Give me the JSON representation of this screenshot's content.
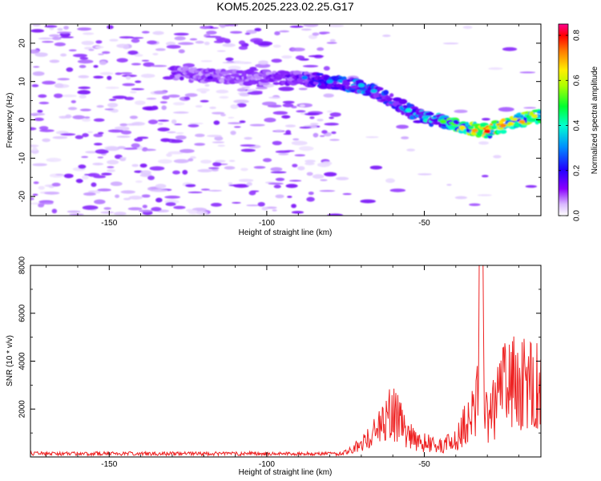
{
  "title": "KOM5.2025.223.02.25.G17",
  "chart_data": [
    {
      "type": "heatmap",
      "xlabel": "Height of straight line (km)",
      "ylabel": "Frequency (Hz)",
      "xlim": [
        -175,
        -13
      ],
      "ylim": [
        -25,
        25
      ],
      "xticks": [
        -150,
        -100,
        -50
      ],
      "yticks": [
        -20,
        -10,
        0,
        10,
        20
      ],
      "colorbar": {
        "label": "Normalized spectral amplitude",
        "range": [
          0,
          0.85
        ],
        "ticks": [
          0.0,
          0.2,
          0.4,
          0.6,
          0.8
        ],
        "colors": [
          "#ffffff",
          "#8a00ff",
          "#2200ff",
          "#00e0ff",
          "#00ff40",
          "#ffff00",
          "#ff8000",
          "#ff0000",
          "#ff0090"
        ]
      },
      "ridge": {
        "description_points_x": [
          -128,
          -110,
          -90,
          -80,
          -72,
          -65,
          -58,
          -52,
          -45,
          -38,
          -30,
          -20,
          -13
        ],
        "description_points_y": [
          12,
          11,
          11,
          10,
          9,
          7,
          4,
          1,
          0,
          -2,
          -3,
          0,
          1
        ],
        "peak_amplitude": [
          0.15,
          0.12,
          0.2,
          0.3,
          0.35,
          0.3,
          0.3,
          0.4,
          0.45,
          0.6,
          0.75,
          0.65,
          0.55
        ]
      }
    },
    {
      "type": "line",
      "xlabel": "Height of straight line (km)",
      "ylabel": "SNR (10 * v/v)",
      "xlim": [
        -175,
        -13
      ],
      "ylim": [
        0,
        8000
      ],
      "xticks": [
        -150,
        -100,
        -50
      ],
      "yticks": [
        2000,
        4000,
        6000,
        8000
      ],
      "color": "#ee2222",
      "series_profile": {
        "x": [
          -175,
          -150,
          -120,
          -100,
          -76,
          -70,
          -65,
          -60,
          -55,
          -50,
          -45,
          -40,
          -37,
          -34,
          -32,
          -30,
          -25,
          -20,
          -15,
          -13
        ],
        "y": [
          100,
          100,
          120,
          110,
          150,
          700,
          1500,
          2500,
          1200,
          800,
          600,
          900,
          1800,
          2800,
          7000,
          2000,
          3800,
          4200,
          4000,
          4600
        ]
      }
    }
  ]
}
